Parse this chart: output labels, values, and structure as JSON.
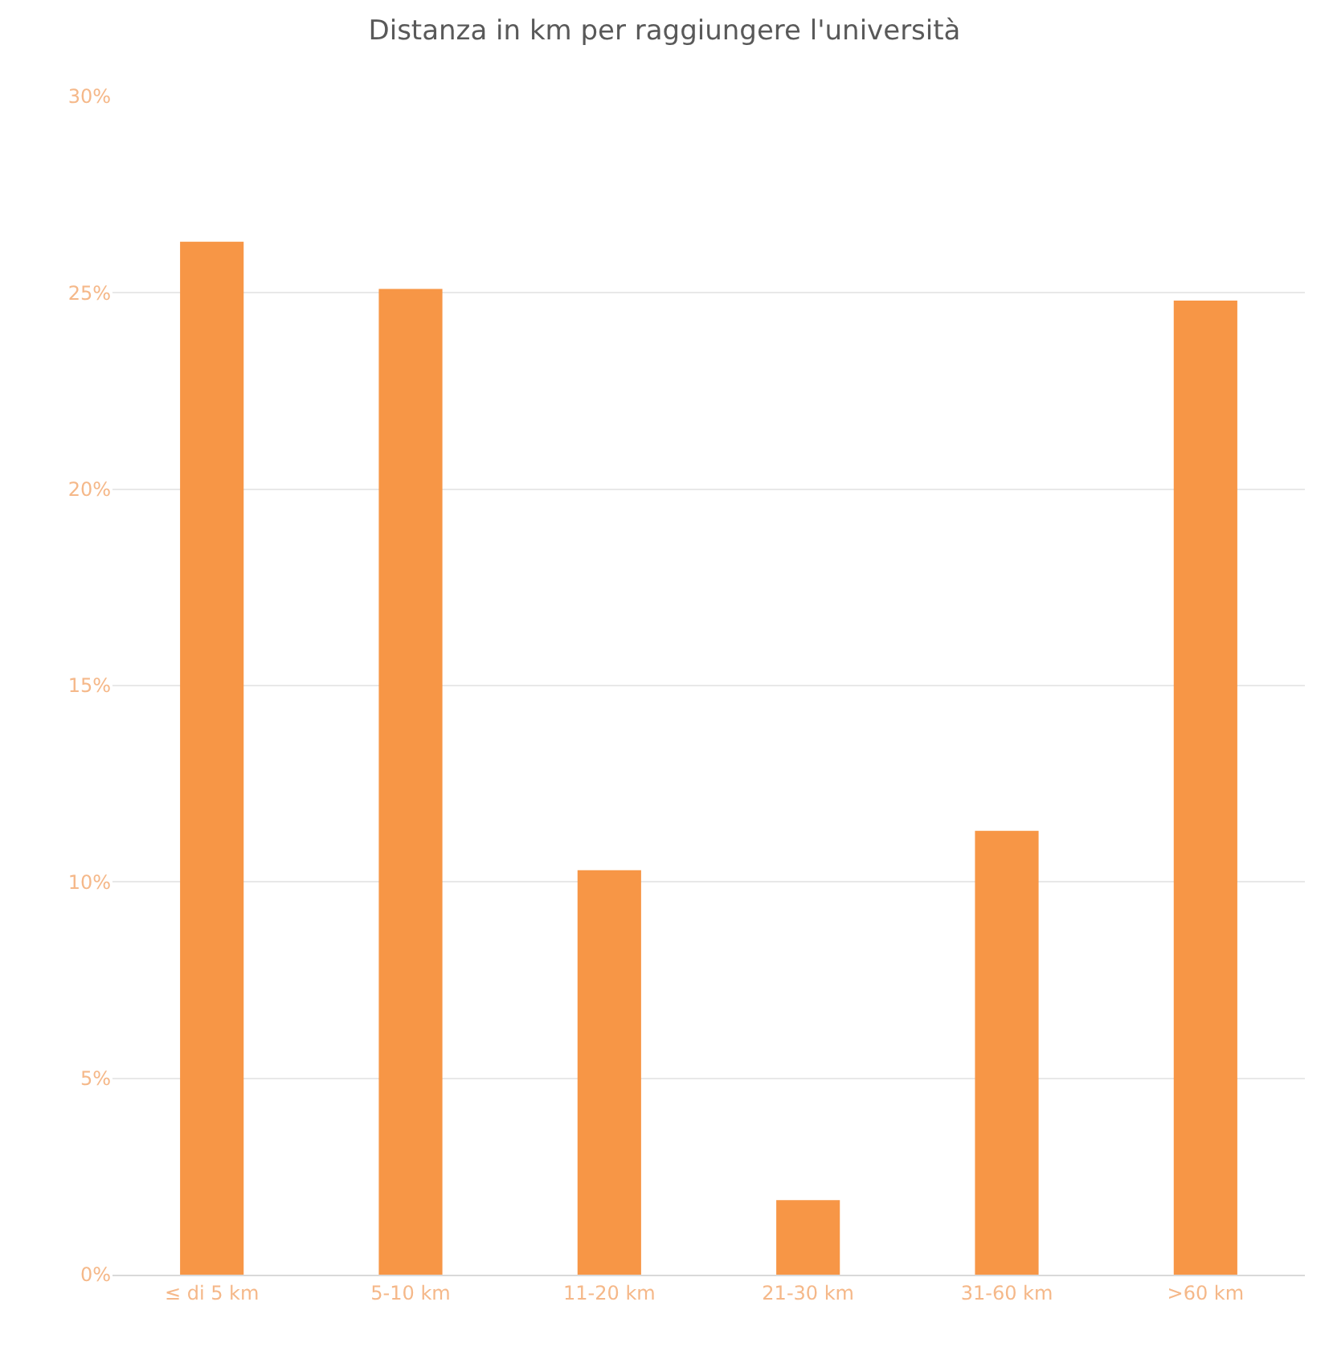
{
  "chart_data": {
    "type": "bar",
    "title": "Distanza in km per raggiungere l'università",
    "categories": [
      "≤ di 5 km",
      "5-10 km",
      "11-20 km",
      "21-30 km",
      "31-60 km",
      ">60 km"
    ],
    "values": [
      26.3,
      25.1,
      10.3,
      1.9,
      11.3,
      24.8
    ],
    "color": "#f79646",
    "ylim": [
      0,
      30
    ],
    "yticks": [
      {
        "value": 0,
        "label": "0%"
      },
      {
        "value": 5,
        "label": "5%"
      },
      {
        "value": 10,
        "label": "10%"
      },
      {
        "value": 15,
        "label": "15%"
      },
      {
        "value": 20,
        "label": "20%"
      },
      {
        "value": 25,
        "label": "25%"
      },
      {
        "value": 30,
        "label": "30%"
      }
    ],
    "grid": "y"
  }
}
